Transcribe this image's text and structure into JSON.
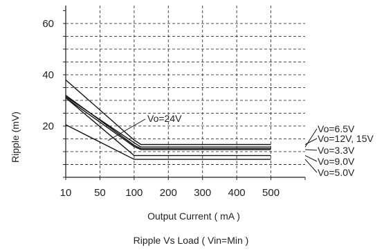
{
  "chart_data": {
    "type": "line",
    "title": "Ripple  Vs Load ( Vin=Min )",
    "xlabel": "Output Current ( mA )",
    "ylabel": "Ripple (mV)",
    "x_tick_labels": [
      "10",
      "50",
      "100",
      "200",
      "300",
      "400",
      "500"
    ],
    "y_tick_labels": [
      "20",
      "40",
      "60"
    ],
    "xlim": [
      0,
      7
    ],
    "ylim": [
      0,
      67
    ],
    "x_gridlines": [
      1,
      2,
      3,
      4,
      5,
      6
    ],
    "y_gridlines": [
      5,
      10,
      15,
      20,
      25,
      30,
      35,
      40,
      45,
      50,
      55,
      60
    ],
    "grid": true,
    "series": [
      {
        "name": "Vo=6.5V",
        "x": [
          "10",
          "100",
          "120",
          "500"
        ],
        "y": [
          31.5,
          13.5,
          11.8,
          11.8
        ]
      },
      {
        "name": "Vo=12V, 15V",
        "x": [
          "10",
          "100",
          "120",
          "500"
        ],
        "y": [
          38,
          14.5,
          12.8,
          12.8
        ]
      },
      {
        "name": "Vo=3.3V",
        "x": [
          "10",
          "100",
          "120",
          "500"
        ],
        "y": [
          31,
          12,
          10.8,
          10.8
        ]
      },
      {
        "name": "Vo=9.0V",
        "x": [
          "10",
          "100",
          "500"
        ],
        "y": [
          31,
          8.5,
          8.5
        ]
      },
      {
        "name": "Vo=5.0V",
        "x": [
          "10",
          "100",
          "500"
        ],
        "y": [
          20.5,
          7,
          7
        ]
      },
      {
        "name": "Vo=24V",
        "x": [
          "10",
          "100",
          "120",
          "500"
        ],
        "y": [
          32,
          12.5,
          11.2,
          11.2
        ]
      }
    ],
    "legend_placement": "right-of-plot"
  }
}
